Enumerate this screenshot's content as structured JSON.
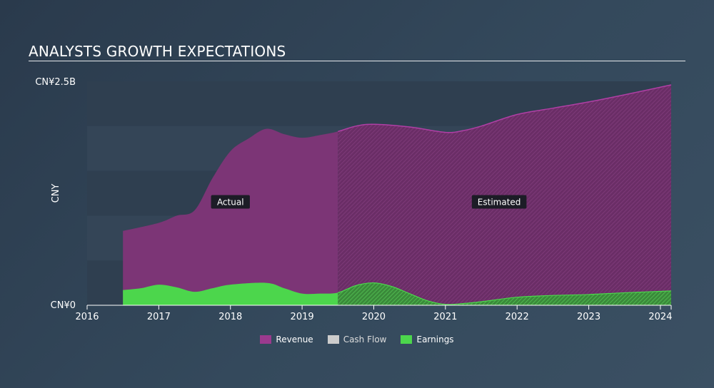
{
  "chart_data": {
    "type": "area",
    "title": "ANALYSTS GROWTH EXPECTATIONS",
    "ylabel": "CNY",
    "y_tick_labels": [
      "CN¥2.5B",
      "CN¥0"
    ],
    "ylim": [
      0,
      2.5
    ],
    "xlim": [
      2016,
      2024.15
    ],
    "x_tick_labels": [
      "2016",
      "2017",
      "2018",
      "2019",
      "2020",
      "2021",
      "2022",
      "2023",
      "2024"
    ],
    "actual_end": 2019.5,
    "annotations": [
      "Actual",
      "Estimated"
    ],
    "series": [
      {
        "name": "Revenue",
        "color": "#9b3a8e",
        "points": [
          [
            2016.5,
            0.83
          ],
          [
            2017.0,
            0.92
          ],
          [
            2017.25,
            1.0
          ],
          [
            2017.5,
            1.06
          ],
          [
            2017.75,
            1.42
          ],
          [
            2018.0,
            1.72
          ],
          [
            2018.25,
            1.86
          ],
          [
            2018.5,
            1.97
          ],
          [
            2018.75,
            1.91
          ],
          [
            2019.0,
            1.87
          ],
          [
            2019.25,
            1.9
          ],
          [
            2019.5,
            1.94
          ],
          [
            2019.75,
            2.0
          ],
          [
            2020.0,
            2.02
          ],
          [
            2020.5,
            1.99
          ],
          [
            2021.0,
            1.93
          ],
          [
            2021.25,
            1.95
          ],
          [
            2021.5,
            2.0
          ],
          [
            2022.0,
            2.13
          ],
          [
            2022.5,
            2.2
          ],
          [
            2023.0,
            2.27
          ],
          [
            2023.5,
            2.35
          ],
          [
            2024.15,
            2.46
          ]
        ]
      },
      {
        "name": "Cash Flow",
        "color": "#cccccc",
        "points": []
      },
      {
        "name": "Earnings",
        "color": "#4cd64c",
        "points": [
          [
            2016.5,
            0.17
          ],
          [
            2016.75,
            0.19
          ],
          [
            2017.0,
            0.23
          ],
          [
            2017.25,
            0.2
          ],
          [
            2017.5,
            0.15
          ],
          [
            2017.75,
            0.19
          ],
          [
            2018.0,
            0.23
          ],
          [
            2018.5,
            0.25
          ],
          [
            2018.75,
            0.19
          ],
          [
            2019.0,
            0.13
          ],
          [
            2019.25,
            0.13
          ],
          [
            2019.5,
            0.14
          ],
          [
            2019.75,
            0.22
          ],
          [
            2020.0,
            0.25
          ],
          [
            2020.25,
            0.21
          ],
          [
            2020.5,
            0.13
          ],
          [
            2020.75,
            0.05
          ],
          [
            2021.0,
            0.01
          ],
          [
            2021.25,
            0.02
          ],
          [
            2021.5,
            0.04
          ],
          [
            2022.0,
            0.09
          ],
          [
            2022.5,
            0.11
          ],
          [
            2023.0,
            0.12
          ],
          [
            2023.5,
            0.14
          ],
          [
            2024.15,
            0.16
          ]
        ]
      }
    ],
    "legend": {
      "placement": "bottom-center",
      "items": [
        {
          "label": "Revenue",
          "color": "#9b3a8e"
        },
        {
          "label": "Cash Flow",
          "color": "#cccccc"
        },
        {
          "label": "Earnings",
          "color": "#4cd64c"
        }
      ]
    }
  }
}
